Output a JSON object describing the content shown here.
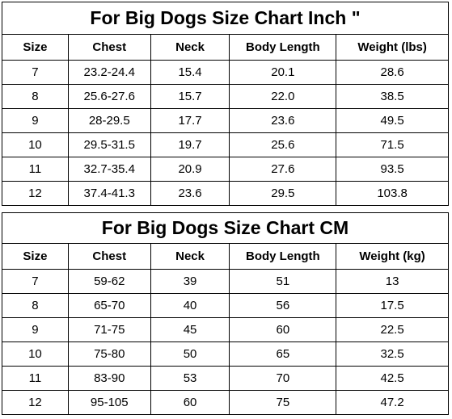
{
  "inch_chart": {
    "title": "For Big Dogs Size Chart Inch \"",
    "headers": [
      "Size",
      "Chest",
      "Neck",
      "Body Length",
      "Weight (lbs)"
    ],
    "rows": [
      [
        "7",
        "23.2-24.4",
        "15.4",
        "20.1",
        "28.6"
      ],
      [
        "8",
        "25.6-27.6",
        "15.7",
        "22.0",
        "38.5"
      ],
      [
        "9",
        "28-29.5",
        "17.7",
        "23.6",
        "49.5"
      ],
      [
        "10",
        "29.5-31.5",
        "19.7",
        "25.6",
        "71.5"
      ],
      [
        "11",
        "32.7-35.4",
        "20.9",
        "27.6",
        "93.5"
      ],
      [
        "12",
        "37.4-41.3",
        "23.6",
        "29.5",
        "103.8"
      ]
    ]
  },
  "cm_chart": {
    "title": "For Big Dogs Size Chart CM",
    "headers": [
      "Size",
      "Chest",
      "Neck",
      "Body Length",
      "Weight (kg)"
    ],
    "rows": [
      [
        "7",
        "59-62",
        "39",
        "51",
        "13"
      ],
      [
        "8",
        "65-70",
        "40",
        "56",
        "17.5"
      ],
      [
        "9",
        "71-75",
        "45",
        "60",
        "22.5"
      ],
      [
        "10",
        "75-80",
        "50",
        "65",
        "32.5"
      ],
      [
        "11",
        "83-90",
        "53",
        "70",
        "42.5"
      ],
      [
        "12",
        "95-105",
        "60",
        "75",
        "47.2"
      ]
    ]
  }
}
